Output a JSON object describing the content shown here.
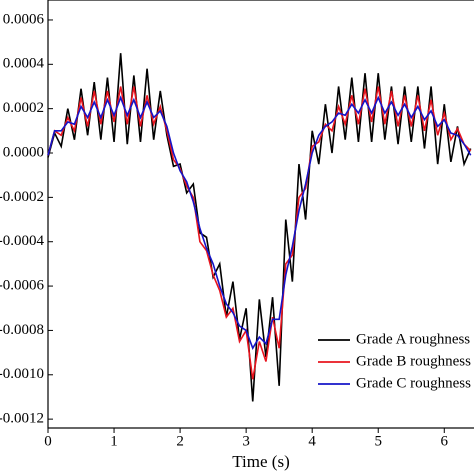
{
  "chart_data": {
    "type": "line",
    "x_label": "Time (s)",
    "x": [
      0,
      0.1,
      0.2,
      0.3,
      0.4,
      0.5,
      0.6,
      0.7,
      0.8,
      0.9,
      1,
      1.1,
      1.2,
      1.3,
      1.4,
      1.5,
      1.6,
      1.7,
      1.8,
      1.9,
      2,
      2.1,
      2.2,
      2.3,
      2.4,
      2.5,
      2.6,
      2.7,
      2.8,
      2.9,
      3,
      3.1,
      3.2,
      3.3,
      3.4,
      3.5,
      3.6,
      3.7,
      3.8,
      3.9,
      4,
      4.1,
      4.2,
      4.3,
      4.4,
      4.5,
      4.6,
      4.7,
      4.8,
      4.9,
      5,
      5.1,
      5.2,
      5.3,
      5.4,
      5.5,
      5.6,
      5.7,
      5.8,
      5.9,
      6,
      6.1,
      6.2,
      6.3,
      6.4
    ],
    "series": [
      {
        "name": "Grade A roughness",
        "color": "#000000",
        "values": [
          -2e-05,
          9e-05,
          3e-05,
          0.0002,
          6e-05,
          0.00029,
          8e-05,
          0.00032,
          6e-05,
          0.00034,
          5e-05,
          0.00045,
          4e-05,
          0.00035,
          5e-05,
          0.00038,
          6e-05,
          0.00028,
          8e-05,
          -6e-05,
          -5e-05,
          -0.00018,
          -0.00014,
          -0.00036,
          -0.00038,
          -0.00056,
          -0.0005,
          -0.00074,
          -0.00058,
          -0.00084,
          -0.0007,
          -0.00112,
          -0.00066,
          -0.00092,
          -0.00065,
          -0.00105,
          -0.0003,
          -0.00058,
          -5e-05,
          -0.0003,
          0.0001,
          -5e-05,
          0.00022,
          0,
          0.0003,
          6e-05,
          0.00034,
          5e-05,
          0.00036,
          5e-05,
          0.00036,
          6e-05,
          0.0003,
          4e-05,
          0.0003,
          5e-05,
          0.0003,
          2e-05,
          0.0003,
          -5e-05,
          0.00022,
          -4e-05,
          0.00012,
          -5e-05,
          2e-05
        ]
      },
      {
        "name": "Grade B roughness",
        "color": "#e8141e",
        "values": [
          -1e-05,
          0.0001,
          8e-05,
          0.00016,
          0.0001,
          0.00025,
          0.00012,
          0.00028,
          0.00013,
          0.00028,
          0.00014,
          0.0003,
          0.00013,
          0.0003,
          0.00012,
          0.00026,
          0.00013,
          0.00021,
          0.0001,
          -3e-05,
          -7e-05,
          -0.00015,
          -0.0002,
          -0.0004,
          -0.00044,
          -0.00055,
          -0.00062,
          -0.00074,
          -0.0007,
          -0.00085,
          -0.0008,
          -0.00102,
          -0.00085,
          -0.00094,
          -0.00074,
          -0.00088,
          -0.0005,
          -0.00046,
          -0.0002,
          -0.00016,
          3e-05,
          5e-05,
          0.00013,
          0.0001,
          0.00021,
          0.00013,
          0.00026,
          0.00013,
          0.00029,
          0.00014,
          0.0003,
          0.00013,
          0.00028,
          0.00012,
          0.00026,
          0.00012,
          0.00026,
          0.0001,
          0.00024,
          8e-05,
          0.00018,
          6e-05,
          0.00011,
          4e-05,
          1e-05
        ]
      },
      {
        "name": "Grade C roughness",
        "color": "#1414c8",
        "values": [
          -1e-05,
          0.0001,
          0.0001,
          0.00014,
          0.00013,
          0.00021,
          0.00016,
          0.00023,
          0.00016,
          0.00024,
          0.00017,
          0.00025,
          0.00017,
          0.00024,
          0.00016,
          0.00023,
          0.00016,
          0.00019,
          0.00012,
          0,
          -8e-05,
          -0.00013,
          -0.00022,
          -0.00034,
          -0.00043,
          -0.0005,
          -0.0006,
          -0.00068,
          -0.00072,
          -0.00078,
          -0.0008,
          -0.00088,
          -0.00083,
          -0.00086,
          -0.00075,
          -0.00075,
          -0.00055,
          -0.00042,
          -0.00026,
          -0.00014,
          0,
          8e-05,
          0.00012,
          0.00014,
          0.00018,
          0.00017,
          0.00022,
          0.00018,
          0.00024,
          0.00018,
          0.00025,
          0.00018,
          0.00023,
          0.00017,
          0.00022,
          0.00016,
          0.00021,
          0.00015,
          0.00019,
          0.00012,
          0.00015,
          9e-05,
          8e-05,
          4e-05,
          -1e-05
        ]
      }
    ],
    "xlim": [
      0,
      6.45
    ],
    "xticks": [
      0,
      1,
      2,
      3,
      4,
      5,
      6
    ],
    "ylim": [
      -0.00124,
      0.00069
    ],
    "yticks": [
      0.0006,
      0.0004,
      0.0002,
      {
        "value": 0,
        "label": "0.0000"
      },
      -0.0002,
      -0.0004,
      -0.0006,
      -0.0008,
      {
        "value": -0.001,
        "label": "-0.0010"
      },
      {
        "value": -0.0012,
        "label": "-0.0012"
      }
    ],
    "grid": false,
    "legend": "lower right"
  }
}
